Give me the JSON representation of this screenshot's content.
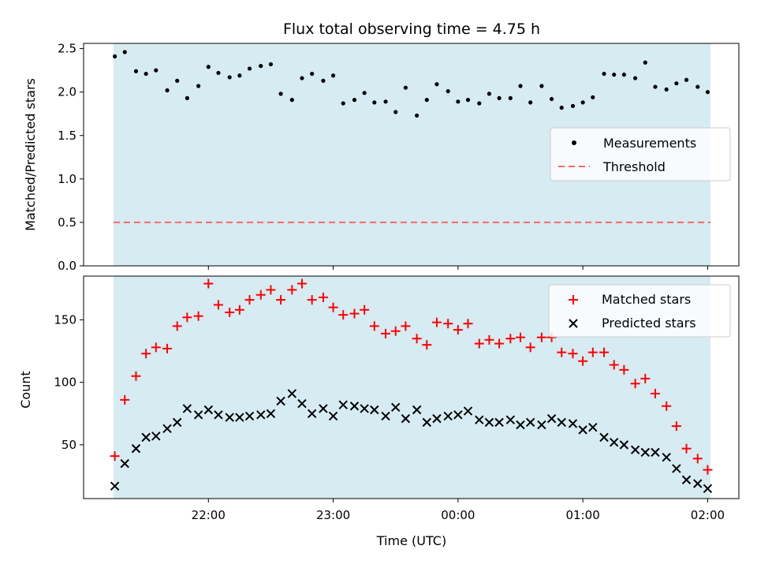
{
  "chart_data": {
    "type": "scatter",
    "title": "Flux total observing time = 4.75 h",
    "xlabel": "Time (UTC)",
    "x_unit": "hours UTC (day of start)",
    "xlim": [
      21.0,
      26.25
    ],
    "xticks": [
      {
        "value": 22,
        "label": "22:00"
      },
      {
        "value": 23,
        "label": "23:00"
      },
      {
        "value": 24,
        "label": "00:00"
      },
      {
        "value": 25,
        "label": "01:00"
      },
      {
        "value": 26,
        "label": "02:00"
      }
    ],
    "observing_window": {
      "start": 21.25,
      "end": 26.0,
      "color": "#add8e6"
    },
    "x": [
      21.25,
      21.33,
      21.42,
      21.5,
      21.58,
      21.67,
      21.75,
      21.83,
      21.92,
      22.0,
      22.08,
      22.17,
      22.25,
      22.33,
      22.42,
      22.5,
      22.58,
      22.67,
      22.75,
      22.83,
      22.92,
      23.0,
      23.08,
      23.17,
      23.25,
      23.33,
      23.42,
      23.5,
      23.58,
      23.67,
      23.75,
      23.83,
      23.92,
      24.0,
      24.08,
      24.17,
      24.25,
      24.33,
      24.42,
      24.5,
      24.58,
      24.67,
      24.75,
      24.83,
      24.92,
      25.0,
      25.08,
      25.17,
      25.25,
      25.33,
      25.42,
      25.5,
      25.58,
      25.67,
      25.75,
      25.83,
      25.92,
      26.0
    ],
    "top": {
      "ylabel": "Matched/Predicted stars",
      "ylim": [
        0,
        2.56
      ],
      "yticks": [
        "0.0",
        "0.5",
        "1.0",
        "1.5",
        "2.0",
        "2.5"
      ],
      "ytick_values": [
        0,
        0.5,
        1.0,
        1.5,
        2.0,
        2.5
      ],
      "threshold": 0.5,
      "series": [
        {
          "name": "Measurements",
          "color": "#000000",
          "marker": "dot",
          "values": [
            2.41,
            2.46,
            2.24,
            2.21,
            2.25,
            2.02,
            2.13,
            1.93,
            2.07,
            2.29,
            2.22,
            2.17,
            2.19,
            2.27,
            2.3,
            2.32,
            1.98,
            1.91,
            2.16,
            2.21,
            2.13,
            2.19,
            1.87,
            1.91,
            1.99,
            1.88,
            1.89,
            1.77,
            2.05,
            1.73,
            1.91,
            2.09,
            2.01,
            1.89,
            1.91,
            1.87,
            1.98,
            1.93,
            1.93,
            2.07,
            1.88,
            2.07,
            1.92,
            1.82,
            1.84,
            1.88,
            1.94,
            2.21,
            2.2,
            2.2,
            2.16,
            2.34,
            2.06,
            2.03,
            2.1,
            2.14,
            2.06,
            2.0
          ]
        },
        {
          "name": "Threshold",
          "color": "#ff6666",
          "style": "dashed",
          "values": [
            0.5,
            0.5
          ]
        }
      ],
      "legend": "center-right"
    },
    "bottom": {
      "ylabel": "Count",
      "ylim": [
        7,
        185
      ],
      "yticks": [
        "50",
        "100",
        "150"
      ],
      "ytick_values": [
        50,
        100,
        150
      ],
      "series": [
        {
          "name": "Matched stars",
          "color": "#ff0000",
          "marker": "plus",
          "values": [
            41,
            86,
            105,
            123,
            128,
            127,
            145,
            152,
            153,
            179,
            162,
            156,
            158,
            166,
            170,
            174,
            166,
            174,
            179,
            166,
            168,
            160,
            154,
            155,
            158,
            145,
            139,
            141,
            145,
            135,
            130,
            148,
            147,
            142,
            147,
            131,
            134,
            131,
            135,
            136,
            128,
            136,
            136,
            124,
            123,
            117,
            124,
            124,
            114,
            110,
            99,
            103,
            91,
            81,
            65,
            47,
            39,
            30
          ]
        },
        {
          "name": "Predicted stars",
          "color": "#000000",
          "marker": "x",
          "values": [
            17,
            35,
            47,
            56,
            57,
            63,
            68,
            79,
            74,
            78,
            74,
            72,
            72,
            73,
            74,
            75,
            85,
            91,
            83,
            75,
            79,
            73,
            82,
            81,
            79,
            78,
            73,
            80,
            71,
            78,
            68,
            71,
            73,
            74,
            77,
            70,
            68,
            68,
            70,
            66,
            68,
            66,
            71,
            68,
            67,
            62,
            64,
            56,
            52,
            50,
            46,
            44,
            44,
            40,
            31,
            22,
            19,
            15
          ]
        }
      ],
      "legend": "top-right"
    },
    "grid": false
  }
}
